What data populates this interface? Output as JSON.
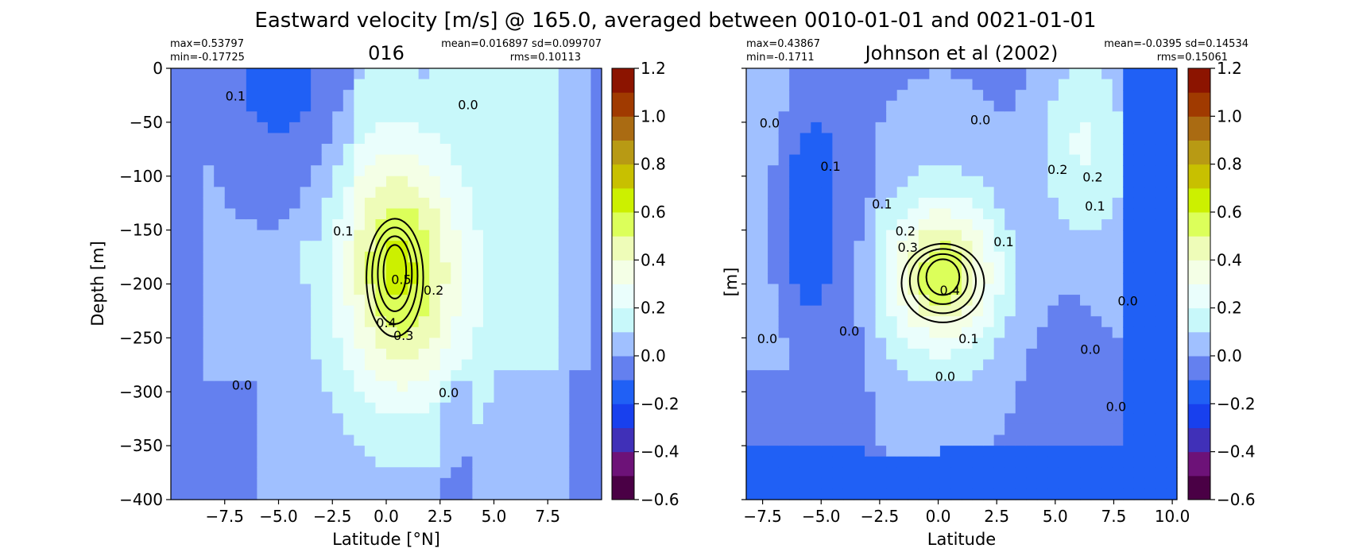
{
  "figure": {
    "title": "Eastward velocity [m/s] @ 165.0, averaged between 0010-01-01 and 0021-01-01"
  },
  "chart_data": [
    {
      "type": "heatmap",
      "title": "016",
      "xlabel": "Latitude [°N]",
      "ylabel": "Depth [m]",
      "xlim": [
        -10,
        10
      ],
      "ylim": [
        -400,
        0
      ],
      "xticks": [
        "−7.5",
        "−5.0",
        "−2.5",
        "0.0",
        "2.5",
        "5.0",
        "7.5"
      ],
      "xtick_values": [
        -7.5,
        -5.0,
        -2.5,
        0.0,
        2.5,
        5.0,
        7.5
      ],
      "yticks": [
        "0",
        "−50",
        "−100",
        "−150",
        "−200",
        "−250",
        "−300",
        "−350",
        "−400"
      ],
      "ytick_values": [
        0,
        -50,
        -100,
        -150,
        -200,
        -250,
        -300,
        -350,
        -400
      ],
      "stats": {
        "max": "max=0.53797",
        "min": "min=-0.17725",
        "mean_sd": "mean=0.016897 sd=0.099707",
        "rms": "rms=0.10113"
      },
      "core": {
        "lat": 0.4,
        "depth": -185,
        "speed": 0.53797
      },
      "contour_labels": [
        {
          "text": "0.1",
          "x": -7.0,
          "y": -30
        },
        {
          "text": "0.0",
          "x": 3.8,
          "y": -38
        },
        {
          "text": "0.1",
          "x": -2.0,
          "y": -155
        },
        {
          "text": "0.5",
          "x": 0.7,
          "y": -200
        },
        {
          "text": "0.2",
          "x": 2.2,
          "y": -210
        },
        {
          "text": "0.4",
          "x": 0.0,
          "y": -240
        },
        {
          "text": "0.3",
          "x": 0.8,
          "y": -252
        },
        {
          "text": "0.0",
          "x": -6.7,
          "y": -298
        },
        {
          "text": "0.0",
          "x": 2.9,
          "y": -305
        }
      ]
    },
    {
      "type": "heatmap",
      "title": "Johnson et al (2002)",
      "xlabel": "Latitude",
      "ylabel": "[m]",
      "xlim": [
        -8.2,
        10.2
      ],
      "ylim": [
        -400,
        0
      ],
      "xticks": [
        "−7.5",
        "−5.0",
        "−2.5",
        "0.0",
        "2.5",
        "5.0",
        "7.5",
        "10.0"
      ],
      "xtick_values": [
        -7.5,
        -5.0,
        -2.5,
        0.0,
        2.5,
        5.0,
        7.5,
        10.0
      ],
      "ytick_values": [
        0,
        -50,
        -100,
        -150,
        -200,
        -250,
        -300,
        -350,
        -400
      ],
      "stats": {
        "max": "max=0.43867",
        "min": "min=-0.1711",
        "mean_sd": "mean=-0.0395 sd=0.14534",
        "rms": "rms=0.15061"
      },
      "core": {
        "lat": 0.2,
        "depth": -190,
        "speed": 0.43867
      },
      "contour_labels": [
        {
          "text": "0.0",
          "x": -7.2,
          "y": -55
        },
        {
          "text": "0.0",
          "x": 1.8,
          "y": -52
        },
        {
          "text": "0.1",
          "x": -4.6,
          "y": -95
        },
        {
          "text": "0.2",
          "x": 5.1,
          "y": -98
        },
        {
          "text": "0.2",
          "x": 6.6,
          "y": -105
        },
        {
          "text": "0.1",
          "x": -2.4,
          "y": -130
        },
        {
          "text": "0.1",
          "x": 6.7,
          "y": -132
        },
        {
          "text": "0.2",
          "x": -1.4,
          "y": -155
        },
        {
          "text": "0.3",
          "x": -1.3,
          "y": -170
        },
        {
          "text": "0.1",
          "x": 2.8,
          "y": -165
        },
        {
          "text": "0.4",
          "x": 0.5,
          "y": -210
        },
        {
          "text": "0.0",
          "x": 8.1,
          "y": -220
        },
        {
          "text": "0.0",
          "x": -3.8,
          "y": -248
        },
        {
          "text": "0.0",
          "x": -7.3,
          "y": -255
        },
        {
          "text": "0.1",
          "x": 1.3,
          "y": -255
        },
        {
          "text": "0.0",
          "x": 6.5,
          "y": -265
        },
        {
          "text": "0.0",
          "x": 0.3,
          "y": -290
        },
        {
          "text": "0.0",
          "x": 7.6,
          "y": -318
        }
      ]
    }
  ],
  "colorbar": {
    "ticks": [
      "1.2",
      "1.0",
      "0.8",
      "0.6",
      "0.4",
      "0.2",
      "0.0",
      "−0.2",
      "−0.4",
      "−0.6"
    ],
    "tick_values": [
      1.2,
      1.0,
      0.8,
      0.6,
      0.4,
      0.2,
      0.0,
      -0.2,
      -0.4,
      -0.6
    ],
    "levels": [
      -0.6,
      -0.5,
      -0.4,
      -0.3,
      -0.2,
      -0.1,
      0.0,
      0.1,
      0.2,
      0.3,
      0.4,
      0.5,
      0.6,
      0.7,
      0.8,
      0.9,
      1.0,
      1.1,
      1.2
    ],
    "colors": [
      "#4a0045",
      "#6d1278",
      "#4030b8",
      "#1840ee",
      "#2060f5",
      "#6480ef",
      "#a0c0ff",
      "#c8f8fa",
      "#eafefc",
      "#f4ffe6",
      "#eefcb8",
      "#dcff5a",
      "#ccf000",
      "#c8c000",
      "#b89a14",
      "#aa6b12",
      "#a03a00",
      "#8c1400"
    ]
  }
}
